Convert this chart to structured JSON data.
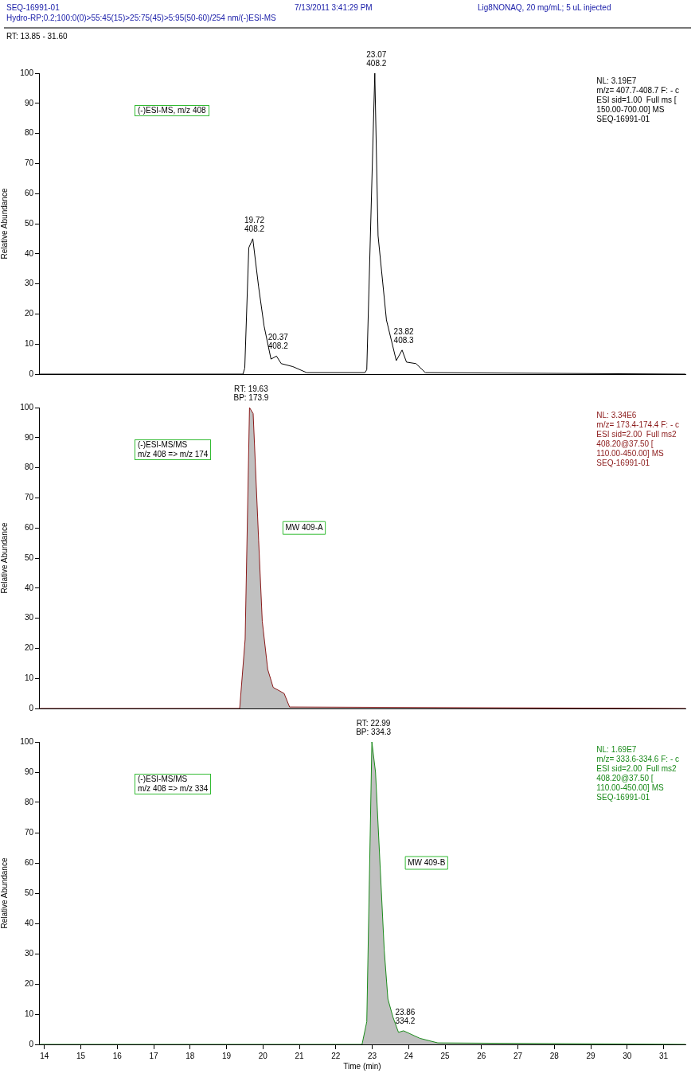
{
  "chart_data": [
    {
      "type": "line",
      "title": "(-)ESI-MS, m/z 408",
      "subtitle": "NL: 3.19E7\nm/z= 407.7-408.7 F: - c\nESI sid=1.00  Full ms [\n150.00-700.00] MS\nSEQ-16991-01",
      "ylabel": "Relative Abundance",
      "xlim": [
        13.85,
        31.6
      ],
      "ylim": [
        0,
        100
      ],
      "yticks": [
        0,
        10,
        20,
        30,
        40,
        50,
        60,
        70,
        80,
        90,
        100
      ],
      "tick_labels": "y",
      "legend": false,
      "series": [
        {
          "color": "#000000",
          "x": [
            13.85,
            19.45,
            19.5,
            19.61,
            19.72,
            19.88,
            20.03,
            20.22,
            20.37,
            20.5,
            20.82,
            21.2,
            22.8,
            22.85,
            23.07,
            23.16,
            23.39,
            23.66,
            23.82,
            23.94,
            24.2,
            24.46,
            31.6
          ],
          "values": [
            0,
            0,
            2,
            42,
            45,
            29,
            16,
            5,
            6,
            3.5,
            2.5,
            0.5,
            0.5,
            1.5,
            100,
            46,
            18,
            4.5,
            8,
            4,
            3.5,
            0.5,
            0
          ]
        }
      ],
      "annotations": [
        "SEQ-16991-01",
        "7/13/2011 3:41:29 PM",
        "Lig8NONAQ, 20 mg/mL; 5 uL injected",
        "Hydro-RP;0.2;100:0(0)>55:45(15)>25:75(45)>5:95(50-60)/254 nm/(-)ESI-MS",
        "RT: 13.85 - 31.60",
        {
          "text": "19.72\n408.2",
          "x": 19.72,
          "y": 45
        },
        {
          "text": "20.37\n408.2",
          "x": 20.37,
          "y": 6
        },
        {
          "text": "23.07\n408.2",
          "x": 23.07,
          "y": 100
        },
        {
          "text": "23.82\n408.3",
          "x": 23.82,
          "y": 8
        }
      ]
    },
    {
      "type": "area",
      "title": "(-)ESI-MS/MS\nm/z 408 => m/z 174",
      "subtitle": "NL: 3.34E6\nm/z= 173.4-174.4 F: - c\nESI sid=2.00  Full ms2\n408.20@37.50 [\n110.00-450.00] MS\nSEQ-16991-01",
      "ylabel": "Relative Abundance",
      "xlim": [
        13.85,
        31.6
      ],
      "ylim": [
        0,
        100
      ],
      "yticks": [
        0,
        10,
        20,
        30,
        40,
        50,
        60,
        70,
        80,
        90,
        100
      ],
      "tick_labels": "y",
      "legend": false,
      "series": [
        {
          "color": "#8b1a1a",
          "x": [
            13.85,
            19.36,
            19.51,
            19.63,
            19.73,
            19.88,
            19.98,
            20.13,
            20.28,
            20.58,
            20.73,
            31.6
          ],
          "values": [
            0,
            0,
            23,
            100,
            98,
            56,
            29,
            13,
            7,
            5,
            0.5,
            0
          ]
        }
      ],
      "annotations": [
        {
          "text": "RT: 19.63\nBP: 173.9",
          "x": 19.63,
          "y": 100
        },
        "MW 409-A"
      ]
    },
    {
      "type": "area",
      "title": "(-)ESI-MS/MS\nm/z 408 => m/z 334",
      "subtitle": "NL: 1.69E7\nm/z= 333.6-334.6 F: - c\nESI sid=2.00  Full ms2\n408.20@37.50 [\n110.00-450.00] MS\nSEQ-16991-01",
      "xlabel": "Time (min)",
      "ylabel": "Relative Abundance",
      "xlim": [
        13.85,
        31.6
      ],
      "xticks": [
        14,
        15,
        16,
        17,
        18,
        19,
        20,
        21,
        22,
        23,
        24,
        25,
        26,
        27,
        28,
        29,
        30,
        31
      ],
      "ylim": [
        0,
        100
      ],
      "yticks": [
        0,
        10,
        20,
        30,
        40,
        50,
        60,
        70,
        80,
        90,
        100
      ],
      "legend": false,
      "series": [
        {
          "color": "#1a8a1a",
          "x": [
            13.85,
            22.72,
            22.85,
            22.99,
            23.09,
            23.33,
            23.43,
            23.57,
            23.72,
            23.86,
            24.31,
            24.8,
            31.6
          ],
          "values": [
            0,
            0,
            7.5,
            100,
            90,
            31,
            15,
            9,
            4,
            4.5,
            2,
            0.5,
            0
          ]
        }
      ],
      "annotations": [
        {
          "text": "RT: 22.99\nBP: 334.3",
          "x": 22.99,
          "y": 100
        },
        {
          "text": "23.86\n334.2",
          "x": 23.86,
          "y": 4.5
        },
        "MW 409-B"
      ]
    }
  ]
}
